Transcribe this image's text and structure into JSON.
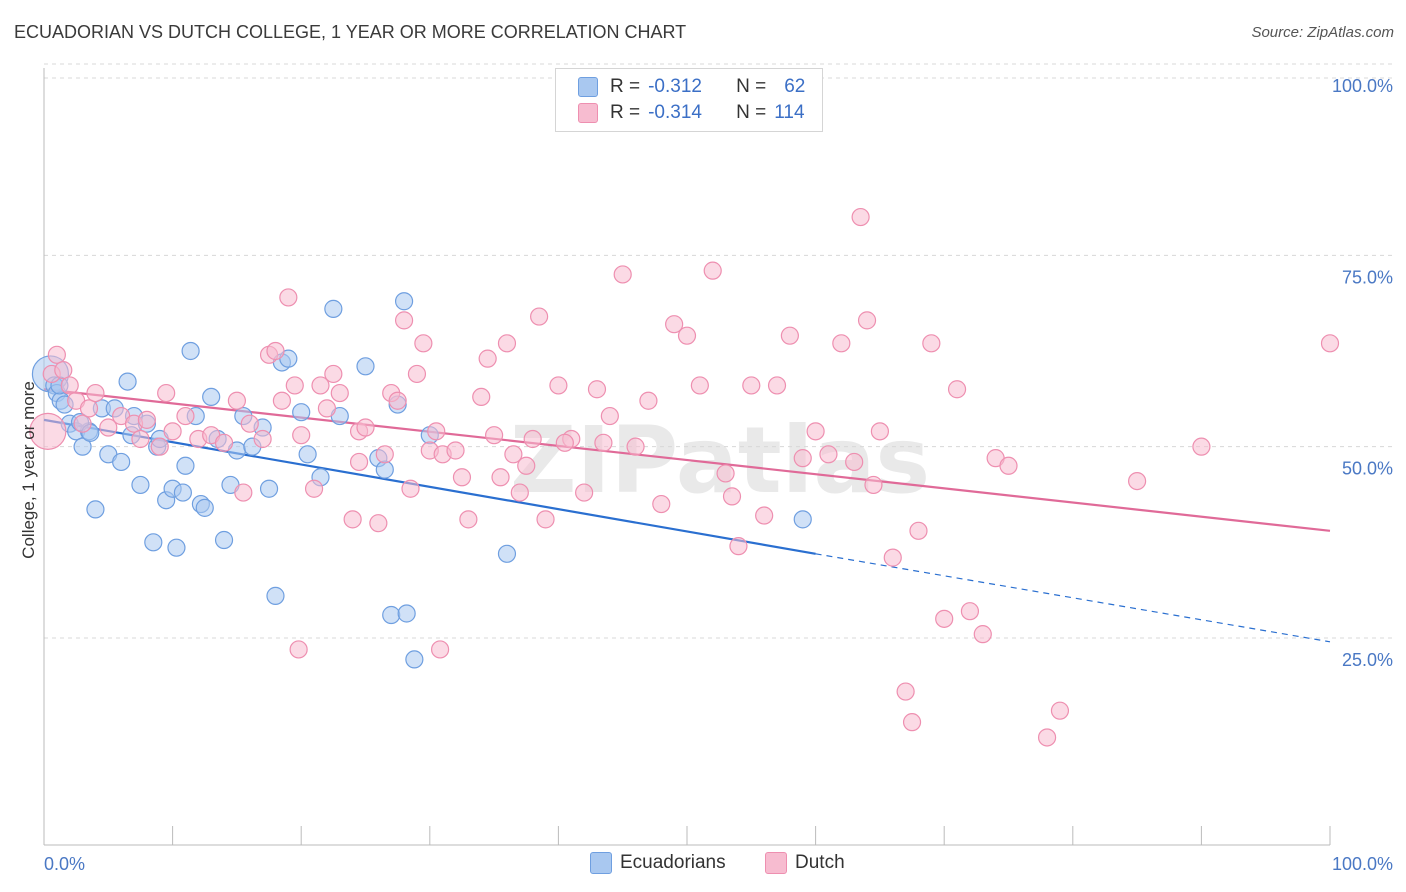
{
  "title": "ECUADORIAN VS DUTCH COLLEGE, 1 YEAR OR MORE CORRELATION CHART",
  "source": "Source: ZipAtlas.com",
  "watermark": "ZIPatlas",
  "legend": {
    "rows": [
      {
        "r_label": "R =",
        "r_value": "-0.312",
        "n_label": "N =",
        "n_value": "62",
        "color": "#a9c8f0",
        "border": "#6f9fe0"
      },
      {
        "r_label": "R =",
        "r_value": "-0.314",
        "n_label": "N =",
        "n_value": "114",
        "color": "#f7bcd0",
        "border": "#ee8fb0"
      }
    ]
  },
  "bottom_legend": [
    {
      "label": "Ecuadorians",
      "color": "#a9c8f0",
      "border": "#6f9fe0"
    },
    {
      "label": "Dutch",
      "color": "#f7bcd0",
      "border": "#ee8fb0"
    }
  ],
  "chart_data": {
    "type": "scatter",
    "ylabel": "College, 1 year or more",
    "xlabel": "",
    "xlim": [
      0,
      100
    ],
    "ylim": [
      0,
      100
    ],
    "y_ticks": [
      {
        "value": 25,
        "label": "25.0%"
      },
      {
        "value": 50,
        "label": "50.0%"
      },
      {
        "value": 75,
        "label": "75.0%"
      },
      {
        "value": 100,
        "label": "100.0%"
      }
    ],
    "x_tick_labels": [
      {
        "value": 0,
        "label": "0.0%"
      },
      {
        "value": 100,
        "label": "100.0%"
      }
    ],
    "x_minor_ticks": [
      0,
      10,
      20,
      30,
      40,
      50,
      60,
      70,
      80,
      90,
      100
    ],
    "series": [
      {
        "name": "Ecuadorians",
        "color": "#a9c8f0",
        "stroke": "#6f9fe0",
        "line_color": "#2a6fd0",
        "trend": {
          "x0": 0,
          "y0": 53.5,
          "x1": 60,
          "y1": 36.0,
          "dash_to_x": 100,
          "dash_to_y": 24.5
        },
        "points": [
          [
            0.5,
            59.5
          ],
          [
            0.8,
            58
          ],
          [
            1,
            57
          ],
          [
            1.3,
            56
          ],
          [
            1.6,
            55.5
          ],
          [
            2,
            53
          ],
          [
            2.5,
            52
          ],
          [
            3,
            50
          ],
          [
            3.5,
            52
          ],
          [
            4,
            41.8
          ],
          [
            4.5,
            55
          ],
          [
            5,
            49
          ],
          [
            5.5,
            55
          ],
          [
            6,
            48
          ],
          [
            6.5,
            58.5
          ],
          [
            6.8,
            51.5
          ],
          [
            7,
            54
          ],
          [
            7.5,
            45
          ],
          [
            8,
            53
          ],
          [
            8.5,
            37.5
          ],
          [
            8.8,
            50
          ],
          [
            9,
            51
          ],
          [
            9.5,
            43
          ],
          [
            10,
            44.5
          ],
          [
            10.3,
            36.8
          ],
          [
            10.8,
            44
          ],
          [
            11,
            47.5
          ],
          [
            11.4,
            62.5
          ],
          [
            11.8,
            54
          ],
          [
            12.2,
            42.5
          ],
          [
            12.5,
            42
          ],
          [
            13,
            56.5
          ],
          [
            13.5,
            51
          ],
          [
            14,
            37.8
          ],
          [
            14.5,
            45
          ],
          [
            15,
            49.5
          ],
          [
            15.5,
            54
          ],
          [
            16.2,
            50
          ],
          [
            17,
            52.5
          ],
          [
            17.5,
            44.5
          ],
          [
            18,
            30.5
          ],
          [
            18.5,
            61
          ],
          [
            19,
            61.5
          ],
          [
            20,
            54.5
          ],
          [
            20.5,
            49
          ],
          [
            21.5,
            46
          ],
          [
            22.5,
            68
          ],
          [
            23,
            54
          ],
          [
            25,
            60.5
          ],
          [
            26,
            48.5
          ],
          [
            26.5,
            47
          ],
          [
            27,
            28
          ],
          [
            27.5,
            55.5
          ],
          [
            28,
            69
          ],
          [
            28.2,
            28.2
          ],
          [
            28.8,
            22.2
          ],
          [
            30,
            51.5
          ],
          [
            36,
            36
          ],
          [
            59,
            40.5
          ],
          [
            1.2,
            58
          ],
          [
            2.8,
            53.2
          ],
          [
            3.6,
            51.8
          ]
        ]
      },
      {
        "name": "Dutch",
        "color": "#f7bcd0",
        "stroke": "#ee8fb0",
        "line_color": "#e06a98",
        "trend": {
          "x0": 0,
          "y0": 57.5,
          "x1": 100,
          "y1": 39.0
        },
        "points": [
          [
            0.3,
            52
          ],
          [
            0.6,
            59.5
          ],
          [
            1,
            62
          ],
          [
            1.5,
            60
          ],
          [
            2,
            58
          ],
          [
            2.5,
            56
          ],
          [
            3,
            53
          ],
          [
            3.5,
            55
          ],
          [
            4,
            57
          ],
          [
            5,
            52.5
          ],
          [
            6,
            54
          ],
          [
            7,
            53
          ],
          [
            7.5,
            51
          ],
          [
            8,
            53.5
          ],
          [
            9,
            50
          ],
          [
            9.5,
            57
          ],
          [
            10,
            52
          ],
          [
            11,
            54
          ],
          [
            12,
            51
          ],
          [
            13,
            51.5
          ],
          [
            14,
            50.5
          ],
          [
            15,
            56
          ],
          [
            15.5,
            44
          ],
          [
            16,
            53
          ],
          [
            17,
            51
          ],
          [
            17.5,
            62
          ],
          [
            18,
            62.5
          ],
          [
            18.5,
            56
          ],
          [
            19,
            69.5
          ],
          [
            19.5,
            58
          ],
          [
            20,
            51.5
          ],
          [
            21,
            44.5
          ],
          [
            21.5,
            58
          ],
          [
            22,
            55
          ],
          [
            22.5,
            59.5
          ],
          [
            23,
            57
          ],
          [
            24,
            40.5
          ],
          [
            24.5,
            52
          ],
          [
            25,
            52.5
          ],
          [
            26,
            40
          ],
          [
            26.5,
            49
          ],
          [
            27,
            57
          ],
          [
            27.5,
            56
          ],
          [
            28,
            66.5
          ],
          [
            28.5,
            44.5
          ],
          [
            29,
            59.5
          ],
          [
            29.5,
            63.5
          ],
          [
            30,
            49.5
          ],
          [
            30.5,
            52
          ],
          [
            31,
            49
          ],
          [
            32,
            49.5
          ],
          [
            32.5,
            46
          ],
          [
            33,
            40.5
          ],
          [
            34,
            56.5
          ],
          [
            34.5,
            61.5
          ],
          [
            35,
            51.5
          ],
          [
            35.5,
            46
          ],
          [
            36,
            63.5
          ],
          [
            36.5,
            49
          ],
          [
            37,
            44
          ],
          [
            37.5,
            47.5
          ],
          [
            38,
            51
          ],
          [
            38.5,
            67
          ],
          [
            39,
            40.5
          ],
          [
            40,
            58
          ],
          [
            41,
            51
          ],
          [
            42,
            44
          ],
          [
            43,
            57.5
          ],
          [
            44,
            54
          ],
          [
            45,
            72.5
          ],
          [
            46,
            50
          ],
          [
            47,
            56
          ],
          [
            48,
            42.5
          ],
          [
            49,
            66
          ],
          [
            50,
            64.5
          ],
          [
            51,
            58
          ],
          [
            52,
            73
          ],
          [
            53,
            46.5
          ],
          [
            53.5,
            43.5
          ],
          [
            54,
            37
          ],
          [
            55,
            58
          ],
          [
            56,
            41
          ],
          [
            57,
            58
          ],
          [
            58,
            64.5
          ],
          [
            59,
            48.5
          ],
          [
            60,
            52
          ],
          [
            61,
            49
          ],
          [
            62,
            63.5
          ],
          [
            63,
            48
          ],
          [
            63.5,
            80
          ],
          [
            64,
            66.5
          ],
          [
            64.5,
            45
          ],
          [
            65,
            52
          ],
          [
            66,
            35.5
          ],
          [
            67,
            18
          ],
          [
            67.5,
            14
          ],
          [
            68,
            39
          ],
          [
            69,
            63.5
          ],
          [
            70,
            27.5
          ],
          [
            71,
            57.5
          ],
          [
            72,
            28.5
          ],
          [
            73,
            25.5
          ],
          [
            74,
            48.5
          ],
          [
            75,
            47.5
          ],
          [
            78,
            12
          ],
          [
            79,
            15.5
          ],
          [
            85,
            45.5
          ],
          [
            90,
            50
          ],
          [
            100,
            63.5
          ],
          [
            19.8,
            23.5
          ],
          [
            30.8,
            23.5
          ],
          [
            43.5,
            50.5
          ],
          [
            40.5,
            50.5
          ],
          [
            24.5,
            48
          ]
        ]
      }
    ]
  }
}
